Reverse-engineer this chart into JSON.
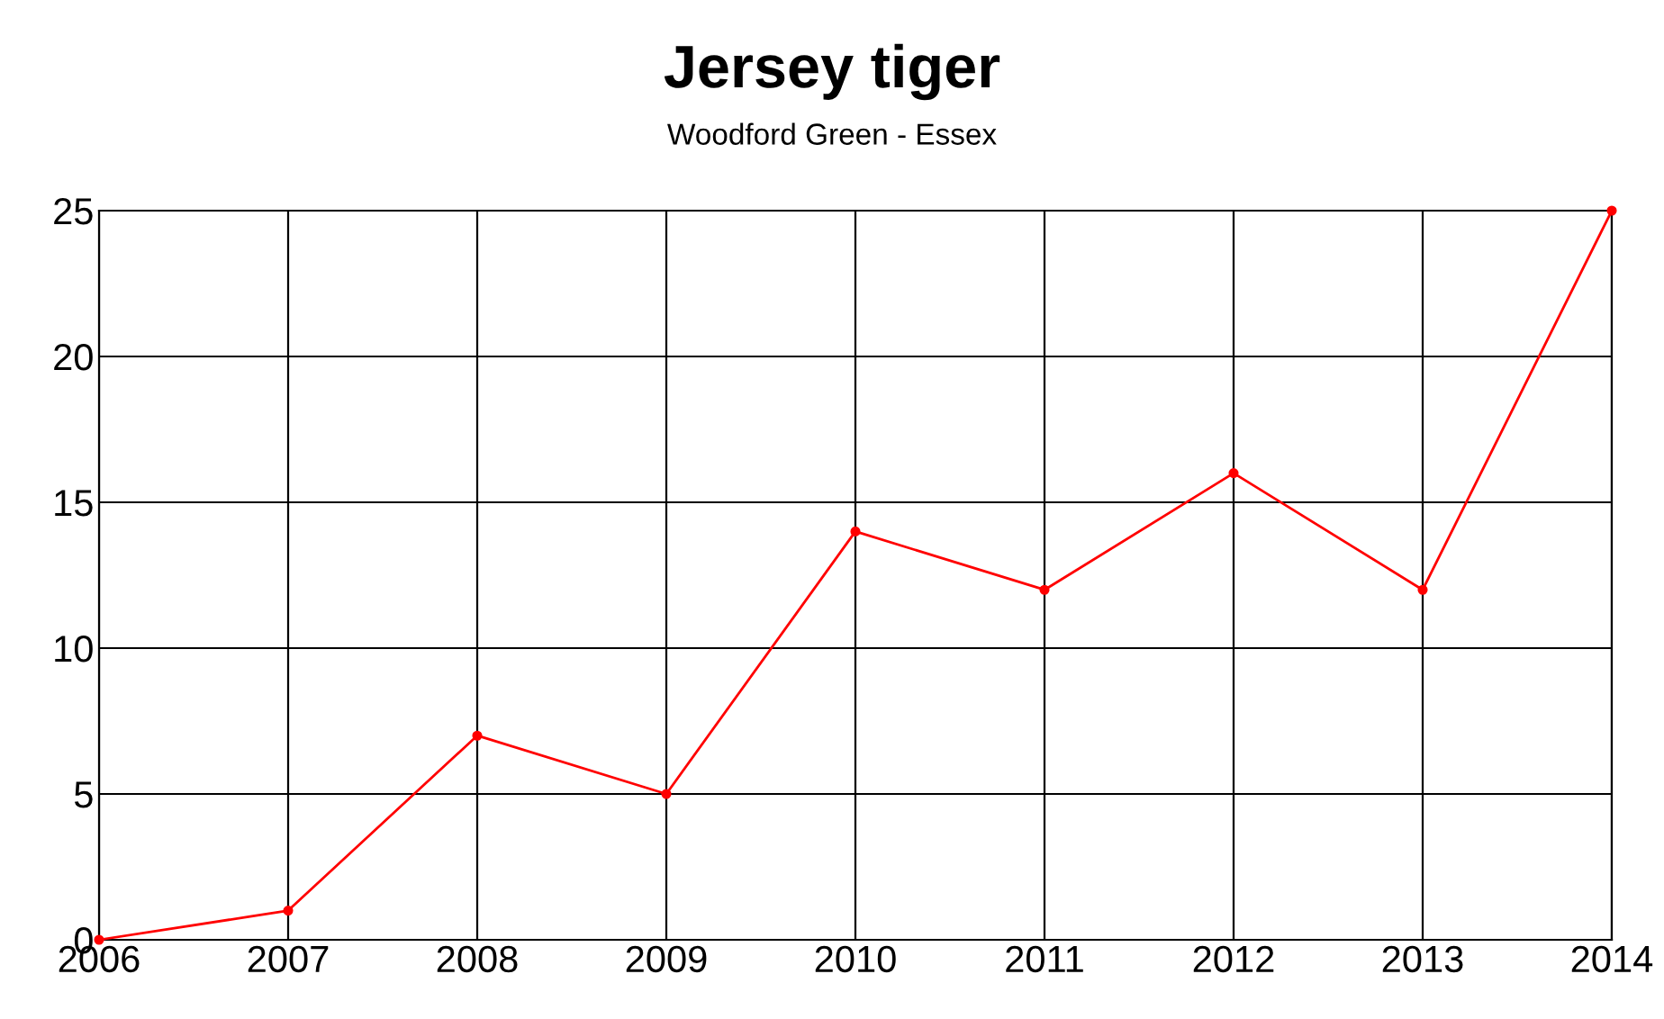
{
  "chart_data": {
    "type": "line",
    "title": "Jersey tiger",
    "subtitle": "Woodford Green - Essex",
    "x": [
      2006,
      2007,
      2008,
      2009,
      2010,
      2011,
      2012,
      2013,
      2014
    ],
    "series": [
      {
        "color": "#ff0000",
        "values": [
          0,
          1,
          7,
          5,
          14,
          12,
          16,
          12,
          25
        ]
      }
    ],
    "xlim": [
      2006,
      2014
    ],
    "xticks": [
      2006,
      2007,
      2008,
      2009,
      2010,
      2011,
      2012,
      2013,
      2014
    ],
    "ylim": [
      0,
      25
    ],
    "yticks": [
      0,
      5,
      10,
      15,
      20,
      25
    ],
    "grid": true,
    "marker": "circle",
    "line_style": "solid",
    "legend": false
  }
}
